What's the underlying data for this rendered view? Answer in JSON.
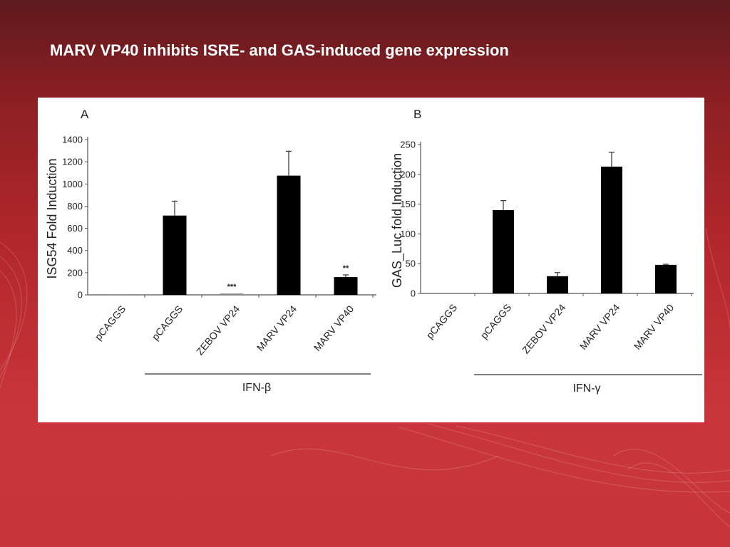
{
  "slide": {
    "title": "MARV VP40 inhibits ISRE- and GAS-induced gene expression"
  },
  "colors": {
    "bar": "#000000",
    "background_dark": "#5e1a1d",
    "background_light": "#c9353a",
    "panel": "#ffffff"
  },
  "chart_data": [
    {
      "type": "bar",
      "panel_label": "A",
      "categories": [
        "pCAGGS",
        "pCAGGS",
        "ZEBOV VP24",
        "MARV VP24",
        "MARV VP40"
      ],
      "values": [
        3,
        715,
        12,
        1075,
        160
      ],
      "errors": [
        0,
        130,
        0,
        220,
        20
      ],
      "significance": [
        "",
        "",
        "***",
        "",
        "**"
      ],
      "ylabel": "ISG54 Fold Induction",
      "ylim": [
        0,
        1400
      ],
      "yticks": [
        "0",
        "200",
        "400",
        "600",
        "800",
        "1000",
        "1200",
        "1400"
      ],
      "group_label": "IFN-β",
      "grid": false,
      "legend": "none"
    },
    {
      "type": "bar",
      "panel_label": "B",
      "categories": [
        "pCAGGS",
        "pCAGGS",
        "ZEBOV VP24",
        "MARV VP24",
        "MARV VP40"
      ],
      "values": [
        1,
        140,
        29,
        213,
        48
      ],
      "errors": [
        0,
        16,
        6,
        24,
        1
      ],
      "significance": [
        "",
        "",
        "",
        "",
        ""
      ],
      "ylabel": "GAS_Luc fold Induction",
      "ylim": [
        0,
        250
      ],
      "yticks": [
        "0",
        "50",
        "100",
        "150",
        "200",
        "250"
      ],
      "group_label": "IFN-γ",
      "grid": false,
      "legend": "none"
    }
  ]
}
